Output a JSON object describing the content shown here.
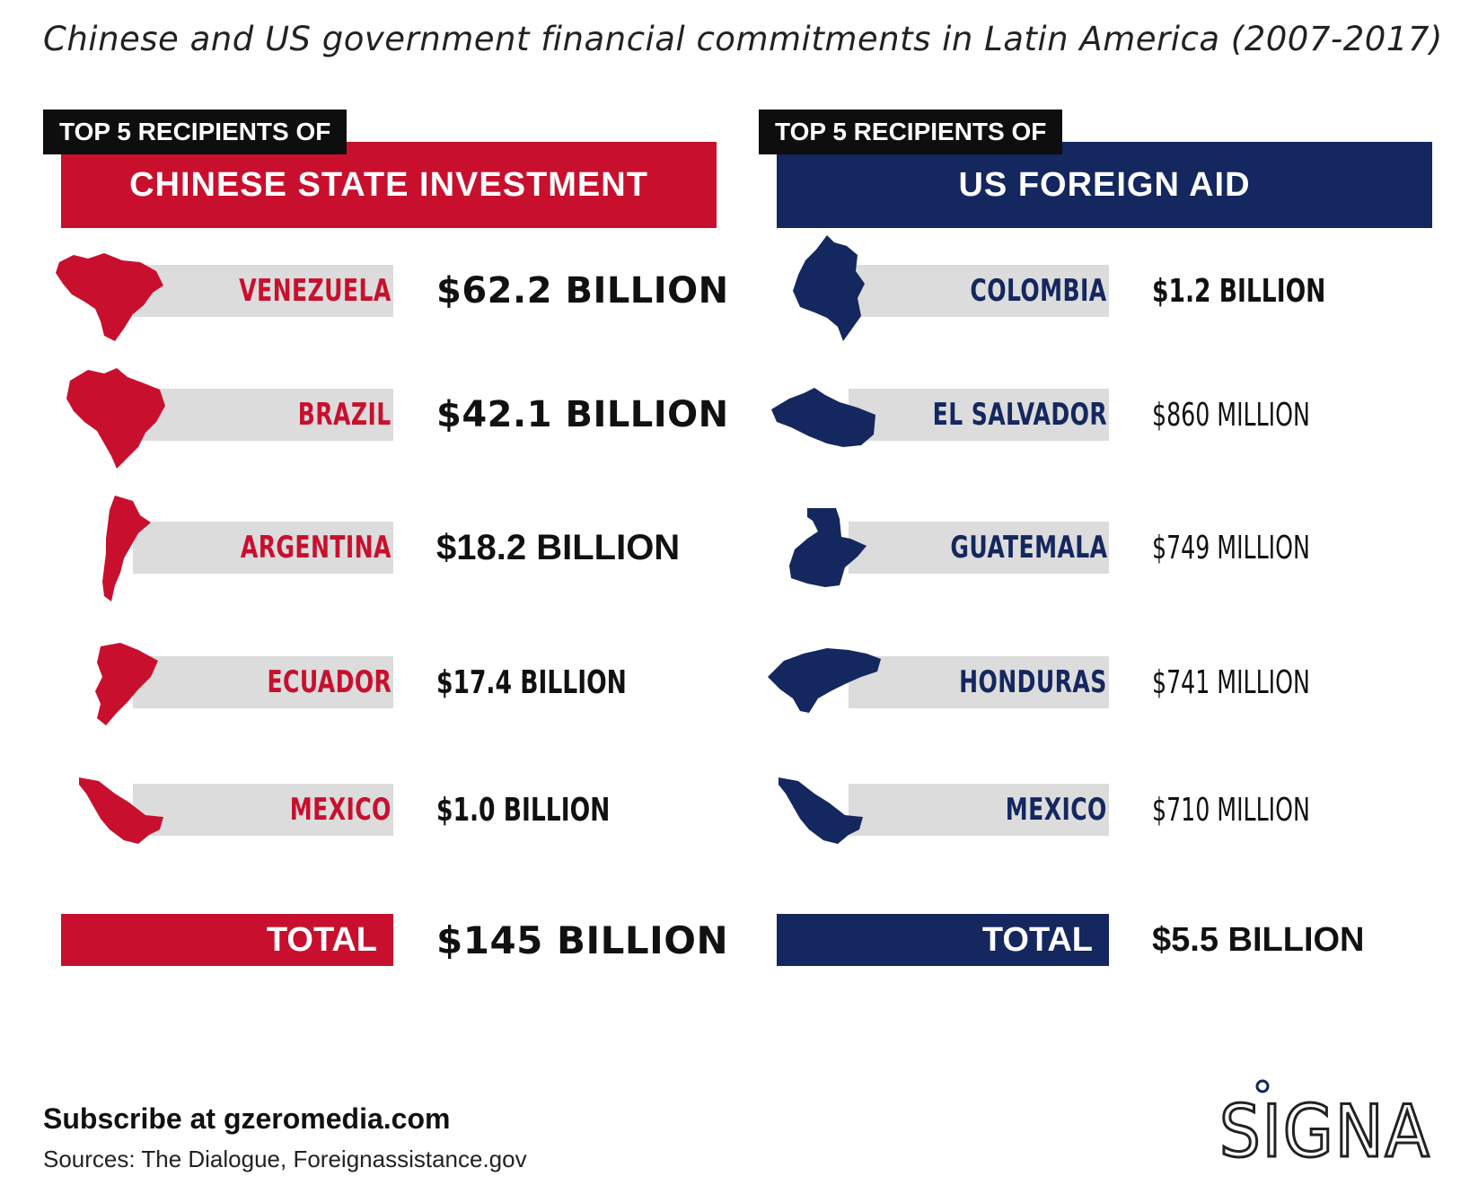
{
  "title": "Chinese and US government financial commitments in Latin America (2007-2017)",
  "colors": {
    "china_red": "#c8102e",
    "us_navy": "#14275e",
    "bar_gray": "#dcdcdc"
  },
  "left_panel": {
    "kicker": "TOP 5 RECIPIENTS OF",
    "banner": "CHINESE STATE INVESTMENT",
    "total_label": "TOTAL",
    "total_value": "$145 BILLION"
  },
  "right_panel": {
    "kicker": "TOP 5 RECIPIENTS OF",
    "banner": "US FOREIGN AID",
    "total_label": "TOTAL",
    "total_value": "$5.5 BILLION"
  },
  "chart_data": [
    {
      "type": "table",
      "title": "CHINESE STATE INVESTMENT",
      "categories": [
        "VENEZUELA",
        "BRAZIL",
        "ARGENTINA",
        "ECUADOR",
        "MEXICO"
      ],
      "values_text": [
        "$62.2 BILLION",
        "$42.1 BILLION",
        "$18.2 BILLION",
        "$17.4 BILLION",
        "$1.0 BILLION"
      ],
      "values_usd_billion": [
        62.2,
        42.1,
        18.2,
        17.4,
        1.0
      ],
      "total_usd_billion": 145,
      "icons": [
        "venezuela-map-icon",
        "brazil-map-icon",
        "argentina-map-icon",
        "ecuador-map-icon",
        "mexico-map-icon"
      ]
    },
    {
      "type": "table",
      "title": "US FOREIGN AID",
      "categories": [
        "COLOMBIA",
        "EL SALVADOR",
        "GUATEMALA",
        "HONDURAS",
        "MEXICO"
      ],
      "values_text": [
        "$1.2 BILLION",
        "$860 MILLION",
        "$749 MILLION",
        "$741 MILLION",
        "$710 MILLION"
      ],
      "values_usd_billion": [
        1.2,
        0.86,
        0.749,
        0.741,
        0.71
      ],
      "total_usd_billion": 5.5,
      "icons": [
        "colombia-map-icon",
        "el-salvador-map-icon",
        "guatemala-map-icon",
        "honduras-map-icon",
        "mexico-map-icon"
      ]
    }
  ],
  "footer": {
    "subscribe": "Subscribe at gzeromedia.com",
    "sources": "Sources: The Dialogue, Foreignassistance.gov"
  },
  "logo": {
    "text": "SIGNAL",
    "icon": "signal-logo"
  }
}
